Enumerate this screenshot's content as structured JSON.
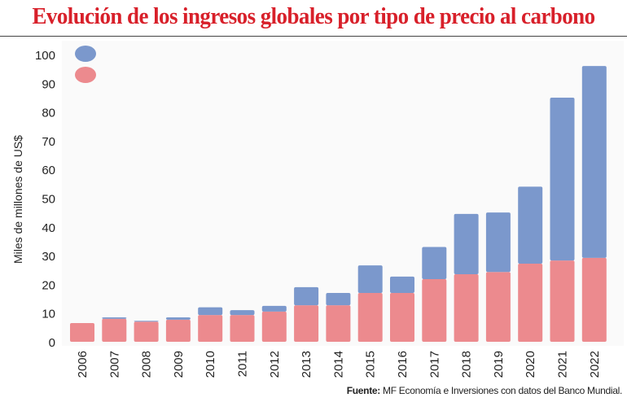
{
  "title": "Evolución de los ingresos globales por tipo de precio al carbono",
  "source_label": "Fuente:",
  "source_text": "MF Economía e Inversiones con datos del Banco Mundial.",
  "colors": {
    "title": "#d8202a",
    "series_top": "#7b98cc",
    "series_bottom": "#ec8a8e"
  },
  "chart_data": {
    "type": "bar",
    "stacked": true,
    "title": "Evolución de los ingresos globales por tipo de precio al carbono",
    "ylabel": "Miles de millones de US$",
    "xlabel": "",
    "ylim": [
      0,
      100
    ],
    "yticks": [
      0,
      10,
      20,
      30,
      40,
      50,
      60,
      70,
      80,
      90,
      100
    ],
    "grid": false,
    "legend": "top-left",
    "categories": [
      "2006",
      "2007",
      "2008",
      "2009",
      "2010",
      "2011",
      "2012",
      "2013",
      "2014",
      "2015",
      "2016",
      "2017",
      "2018",
      "2019",
      "2020",
      "2021",
      "2022"
    ],
    "series": [
      {
        "color": "#ec8a8e",
        "values": [
          6.5,
          8.0,
          7.0,
          7.7,
          9.3,
          9.3,
          10.5,
          12.7,
          12.7,
          17.0,
          17.0,
          21.8,
          23.5,
          24.3,
          27.2,
          28.3,
          29.2
        ]
      },
      {
        "color": "#7b98cc",
        "values": [
          0,
          0.5,
          0.3,
          0.8,
          2.7,
          1.7,
          2.0,
          6.3,
          4.3,
          9.6,
          5.7,
          11.2,
          21.0,
          20.7,
          26.8,
          56.7,
          66.8
        ]
      }
    ]
  }
}
